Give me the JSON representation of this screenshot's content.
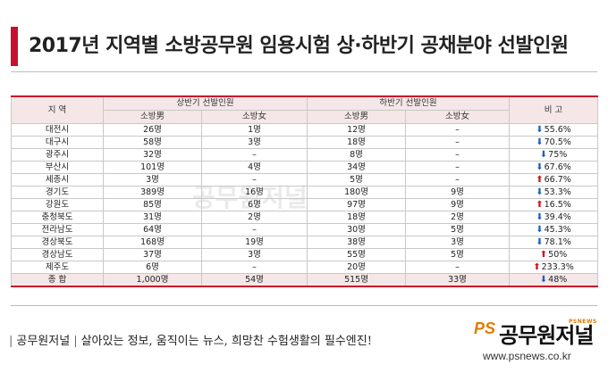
{
  "title": "2017년 지역별 소방공무원 임용시험 상·하반기 공채분야 선발인원",
  "table": {
    "region_header": "지 역",
    "first_half_header": "상반기 선발인원",
    "second_half_header": "하반기 선발인원",
    "note_header": "비 고",
    "male_header": "소방男",
    "female_header": "소방女",
    "rows": [
      {
        "region": "대전시",
        "h1_male": "26명",
        "h1_female": "1명",
        "h2_male": "12명",
        "h2_female": "–",
        "note": "55.6%",
        "dir": "down"
      },
      {
        "region": "대구시",
        "h1_male": "58명",
        "h1_female": "3명",
        "h2_male": "18명",
        "h2_female": "–",
        "note": "70.5%",
        "dir": "down"
      },
      {
        "region": "광주시",
        "h1_male": "32명",
        "h1_female": "–",
        "h2_male": "8명",
        "h2_female": "–",
        "note": "75%",
        "dir": "down"
      },
      {
        "region": "부산시",
        "h1_male": "101명",
        "h1_female": "4명",
        "h2_male": "34명",
        "h2_female": "–",
        "note": "67.6%",
        "dir": "down"
      },
      {
        "region": "세종시",
        "h1_male": "3명",
        "h1_female": "–",
        "h2_male": "5명",
        "h2_female": "–",
        "note": "66.7%",
        "dir": "up"
      },
      {
        "region": "경기도",
        "h1_male": "389명",
        "h1_female": "16명",
        "h2_male": "180명",
        "h2_female": "9명",
        "note": "53.3%",
        "dir": "down"
      },
      {
        "region": "강원도",
        "h1_male": "85명",
        "h1_female": "6명",
        "h2_male": "97명",
        "h2_female": "9명",
        "note": "16.5%",
        "dir": "up"
      },
      {
        "region": "충청북도",
        "h1_male": "31명",
        "h1_female": "2명",
        "h2_male": "18명",
        "h2_female": "2명",
        "note": "39.4%",
        "dir": "down"
      },
      {
        "region": "전라남도",
        "h1_male": "64명",
        "h1_female": "–",
        "h2_male": "30명",
        "h2_female": "5명",
        "note": "45.3%",
        "dir": "down"
      },
      {
        "region": "경상북도",
        "h1_male": "168명",
        "h1_female": "19명",
        "h2_male": "38명",
        "h2_female": "3명",
        "note": "78.1%",
        "dir": "down"
      },
      {
        "region": "경상남도",
        "h1_male": "37명",
        "h1_female": "3명",
        "h2_male": "55명",
        "h2_female": "5명",
        "note": "50%",
        "dir": "up"
      },
      {
        "region": "제주도",
        "h1_male": "6명",
        "h1_female": "–",
        "h2_male": "20명",
        "h2_female": "–",
        "note": "233.3%",
        "dir": "up"
      }
    ],
    "total": {
      "region": "종 합",
      "h1_male": "1,000명",
      "h1_female": "54명",
      "h2_male": "515명",
      "h2_female": "33명",
      "note": "48%",
      "dir": "down"
    }
  },
  "footer": {
    "brand": "공무원저널",
    "slogan": "살아있는 정보, 움직이는 뉴스, 희망찬 수험생활의 필수엔진!",
    "logo_mark": "PS",
    "logo_name": "공무원저널",
    "logo_small": "PSNEWS",
    "url": "www.psnews.co.kr"
  },
  "watermark": "공무원저널",
  "colors": {
    "accent": "#c8102e",
    "header_bg": "#f5e7e7",
    "down_arrow": "#1f5fbf",
    "up_arrow": "#d0121b",
    "logo_orange": "#e07b00"
  }
}
